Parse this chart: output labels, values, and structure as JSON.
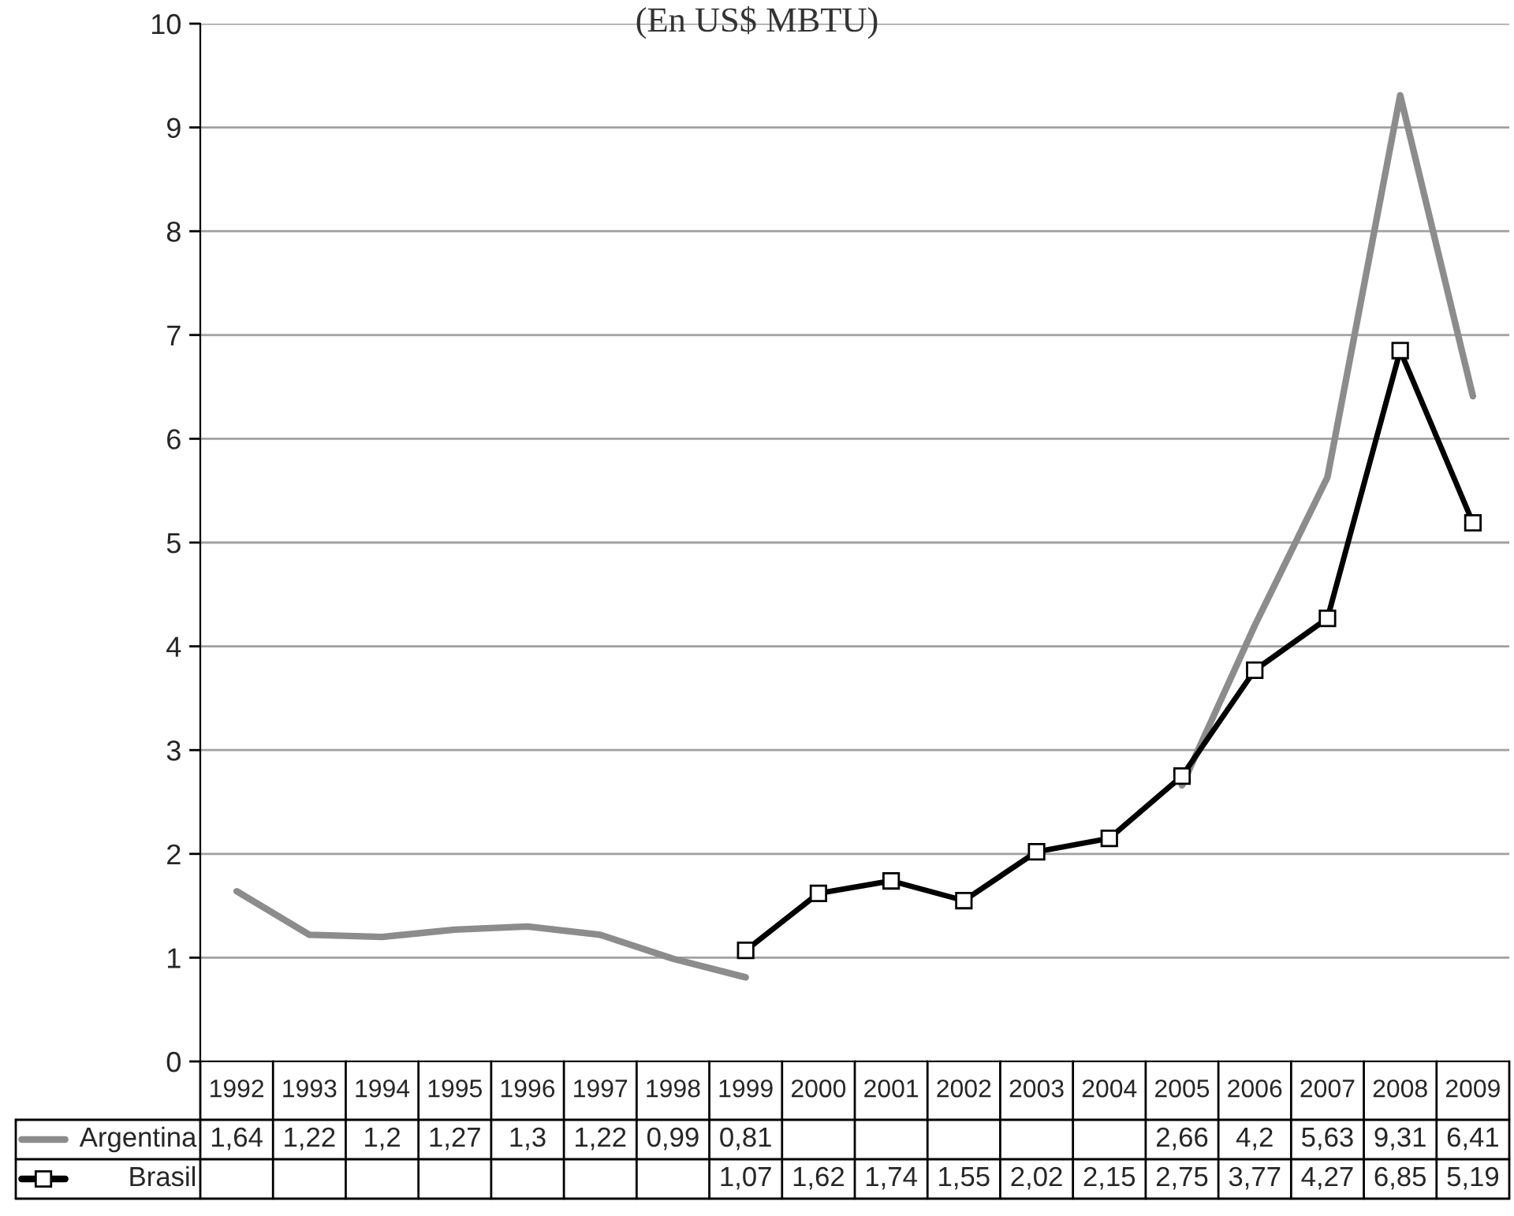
{
  "chart_data": {
    "type": "line",
    "title": "(En US$ MBTU)",
    "categories": [
      "1992",
      "1993",
      "1994",
      "1995",
      "1996",
      "1997",
      "1998",
      "1999",
      "2000",
      "2001",
      "2002",
      "2003",
      "2004",
      "2005",
      "2006",
      "2007",
      "2008",
      "2009"
    ],
    "series": [
      {
        "name": "Argentina",
        "color": "#8c8c8c",
        "marker": "none",
        "values": [
          1.64,
          1.22,
          1.2,
          1.27,
          1.3,
          1.22,
          0.99,
          0.81,
          null,
          null,
          null,
          null,
          null,
          2.66,
          4.2,
          5.63,
          9.31,
          6.41
        ],
        "value_labels": [
          "1,64",
          "1,22",
          "1,2",
          "1,27",
          "1,3",
          "1,22",
          "0,99",
          "0,81",
          null,
          null,
          null,
          null,
          null,
          "2,66",
          "4,2",
          "5,63",
          "9,31",
          "6,41"
        ]
      },
      {
        "name": "Brasil",
        "color": "#000000",
        "marker": "square",
        "values": [
          null,
          null,
          null,
          null,
          null,
          null,
          null,
          1.07,
          1.62,
          1.74,
          1.55,
          2.02,
          2.15,
          2.75,
          3.77,
          4.27,
          6.85,
          5.19
        ],
        "value_labels": [
          null,
          null,
          null,
          null,
          null,
          null,
          null,
          "1,07",
          "1,62",
          "1,74",
          "1,55",
          "2,02",
          "2,15",
          "2,75",
          "3,77",
          "4,27",
          "6,85",
          "5,19"
        ]
      }
    ],
    "ylim": [
      0,
      10
    ],
    "yticks": [
      0,
      1,
      2,
      3,
      4,
      5,
      6,
      7,
      8,
      9,
      10
    ],
    "grid": "y",
    "legend": "bottom"
  }
}
